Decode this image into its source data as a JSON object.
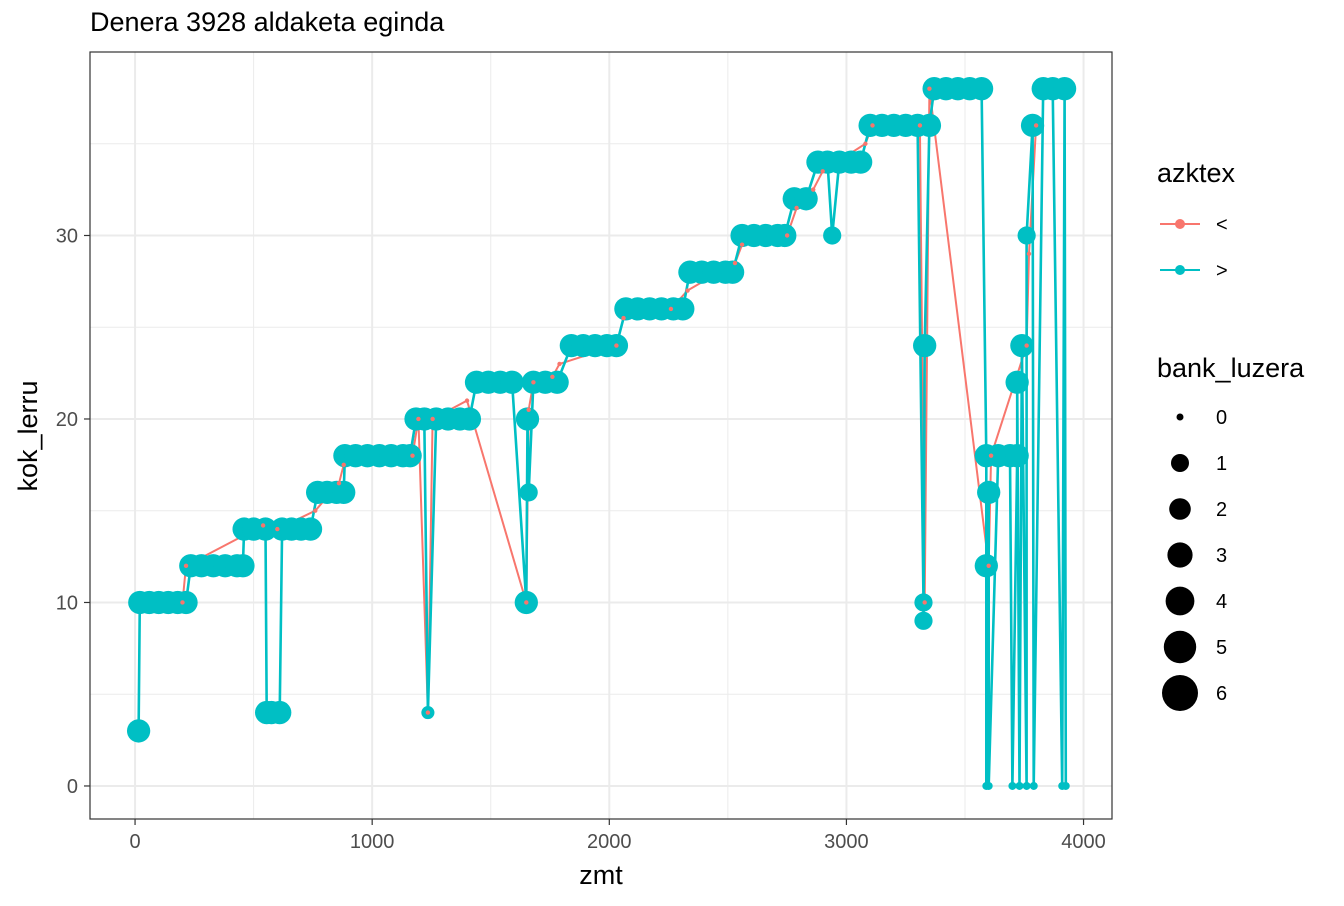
{
  "chart_data": {
    "type": "scatter",
    "title": "Denera 3928 aldaketa eginda",
    "xlabel": "zmt",
    "ylabel": "kok_lerru",
    "xlim": [
      -190,
      4120
    ],
    "ylim": [
      -1.8,
      40
    ],
    "xticks": [
      0,
      1000,
      2000,
      3000,
      4000
    ],
    "xtick_labels": [
      "0",
      "1000",
      "2000",
      "3000",
      "4000"
    ],
    "yticks": [
      0,
      10,
      20,
      30
    ],
    "ytick_labels": [
      "0",
      "10",
      "20",
      "30"
    ],
    "grid": true,
    "legend_placement": "right",
    "colors": {
      "<": "#F8766D",
      ">": "#00BFC4"
    },
    "legend_color": {
      "title": "azktex",
      "entries": [
        {
          "label": "<",
          "color": "#F8766D"
        },
        {
          "label": ">",
          "color": "#00BFC4"
        }
      ]
    },
    "legend_size": {
      "title": "bank_luzera",
      "entries": [
        {
          "label": "0",
          "value": 0
        },
        {
          "label": "1",
          "value": 1
        },
        {
          "label": "2",
          "value": 2
        },
        {
          "label": "3",
          "value": 3
        },
        {
          "label": "4",
          "value": 4
        },
        {
          "label": "5",
          "value": 5
        },
        {
          "label": "6",
          "value": 6
        }
      ]
    },
    "series": [
      {
        "name": ">",
        "color": "#00BFC4",
        "points": [
          {
            "x": 15,
            "y": 3,
            "size": 3
          },
          {
            "x": 20,
            "y": 10,
            "size": 3
          },
          {
            "x": 60,
            "y": 10,
            "size": 3
          },
          {
            "x": 100,
            "y": 10,
            "size": 3
          },
          {
            "x": 140,
            "y": 10,
            "size": 3
          },
          {
            "x": 180,
            "y": 10,
            "size": 3
          },
          {
            "x": 215,
            "y": 10,
            "size": 3
          },
          {
            "x": 235,
            "y": 12,
            "size": 3
          },
          {
            "x": 280,
            "y": 12,
            "size": 3
          },
          {
            "x": 330,
            "y": 12,
            "size": 3
          },
          {
            "x": 380,
            "y": 12,
            "size": 3
          },
          {
            "x": 430,
            "y": 12,
            "size": 3
          },
          {
            "x": 455,
            "y": 12,
            "size": 3
          },
          {
            "x": 460,
            "y": 14,
            "size": 3
          },
          {
            "x": 500,
            "y": 14,
            "size": 3
          },
          {
            "x": 550,
            "y": 14,
            "size": 3
          },
          {
            "x": 555,
            "y": 4,
            "size": 3
          },
          {
            "x": 575,
            "y": 4,
            "size": 3
          },
          {
            "x": 610,
            "y": 4,
            "size": 3
          },
          {
            "x": 620,
            "y": 14,
            "size": 3
          },
          {
            "x": 660,
            "y": 14,
            "size": 3
          },
          {
            "x": 700,
            "y": 14,
            "size": 3
          },
          {
            "x": 740,
            "y": 14,
            "size": 3
          },
          {
            "x": 770,
            "y": 16,
            "size": 3
          },
          {
            "x": 810,
            "y": 16,
            "size": 3
          },
          {
            "x": 850,
            "y": 16,
            "size": 3
          },
          {
            "x": 880,
            "y": 16,
            "size": 3
          },
          {
            "x": 885,
            "y": 18,
            "size": 3
          },
          {
            "x": 930,
            "y": 18,
            "size": 3
          },
          {
            "x": 980,
            "y": 18,
            "size": 3
          },
          {
            "x": 1030,
            "y": 18,
            "size": 3
          },
          {
            "x": 1080,
            "y": 18,
            "size": 3
          },
          {
            "x": 1130,
            "y": 18,
            "size": 3
          },
          {
            "x": 1160,
            "y": 18,
            "size": 3
          },
          {
            "x": 1185,
            "y": 20,
            "size": 3
          },
          {
            "x": 1220,
            "y": 20,
            "size": 3
          },
          {
            "x": 1235,
            "y": 4,
            "size": 1
          },
          {
            "x": 1270,
            "y": 20,
            "size": 3
          },
          {
            "x": 1320,
            "y": 20,
            "size": 3
          },
          {
            "x": 1370,
            "y": 20,
            "size": 3
          },
          {
            "x": 1410,
            "y": 20,
            "size": 3
          },
          {
            "x": 1440,
            "y": 22,
            "size": 3
          },
          {
            "x": 1490,
            "y": 22,
            "size": 3
          },
          {
            "x": 1540,
            "y": 22,
            "size": 3
          },
          {
            "x": 1590,
            "y": 22,
            "size": 3
          },
          {
            "x": 1655,
            "y": 20,
            "size": 3
          },
          {
            "x": 1660,
            "y": 16,
            "size": 2
          },
          {
            "x": 1650,
            "y": 10,
            "size": 3
          },
          {
            "x": 1680,
            "y": 22,
            "size": 3
          },
          {
            "x": 1730,
            "y": 22,
            "size": 3
          },
          {
            "x": 1780,
            "y": 22,
            "size": 3
          },
          {
            "x": 1840,
            "y": 24,
            "size": 3
          },
          {
            "x": 1890,
            "y": 24,
            "size": 3
          },
          {
            "x": 1940,
            "y": 24,
            "size": 3
          },
          {
            "x": 1990,
            "y": 24,
            "size": 3
          },
          {
            "x": 2030,
            "y": 24,
            "size": 3
          },
          {
            "x": 2070,
            "y": 26,
            "size": 3
          },
          {
            "x": 2120,
            "y": 26,
            "size": 3
          },
          {
            "x": 2170,
            "y": 26,
            "size": 3
          },
          {
            "x": 2220,
            "y": 26,
            "size": 3
          },
          {
            "x": 2270,
            "y": 26,
            "size": 3
          },
          {
            "x": 2310,
            "y": 26,
            "size": 3
          },
          {
            "x": 2340,
            "y": 28,
            "size": 3
          },
          {
            "x": 2390,
            "y": 28,
            "size": 3
          },
          {
            "x": 2440,
            "y": 28,
            "size": 3
          },
          {
            "x": 2490,
            "y": 28,
            "size": 3
          },
          {
            "x": 2520,
            "y": 28,
            "size": 3
          },
          {
            "x": 2560,
            "y": 30,
            "size": 3
          },
          {
            "x": 2610,
            "y": 30,
            "size": 3
          },
          {
            "x": 2660,
            "y": 30,
            "size": 3
          },
          {
            "x": 2710,
            "y": 30,
            "size": 3
          },
          {
            "x": 2740,
            "y": 30,
            "size": 3
          },
          {
            "x": 2780,
            "y": 32,
            "size": 3
          },
          {
            "x": 2830,
            "y": 32,
            "size": 3
          },
          {
            "x": 2880,
            "y": 34,
            "size": 3
          },
          {
            "x": 2920,
            "y": 34,
            "size": 3
          },
          {
            "x": 2940,
            "y": 30,
            "size": 2
          },
          {
            "x": 2970,
            "y": 34,
            "size": 3
          },
          {
            "x": 3020,
            "y": 34,
            "size": 3
          },
          {
            "x": 3060,
            "y": 34,
            "size": 3
          },
          {
            "x": 3100,
            "y": 36,
            "size": 3
          },
          {
            "x": 3150,
            "y": 36,
            "size": 3
          },
          {
            "x": 3200,
            "y": 36,
            "size": 3
          },
          {
            "x": 3250,
            "y": 36,
            "size": 3
          },
          {
            "x": 3300,
            "y": 36,
            "size": 3
          },
          {
            "x": 3350,
            "y": 36,
            "size": 3
          },
          {
            "x": 3330,
            "y": 24,
            "size": 3
          },
          {
            "x": 3325,
            "y": 10,
            "size": 2
          },
          {
            "x": 3325,
            "y": 9,
            "size": 2
          },
          {
            "x": 3370,
            "y": 38,
            "size": 3
          },
          {
            "x": 3420,
            "y": 38,
            "size": 3
          },
          {
            "x": 3470,
            "y": 38,
            "size": 3
          },
          {
            "x": 3520,
            "y": 38,
            "size": 3
          },
          {
            "x": 3570,
            "y": 38,
            "size": 3
          },
          {
            "x": 3590,
            "y": 18,
            "size": 3
          },
          {
            "x": 3600,
            "y": 16,
            "size": 3
          },
          {
            "x": 3590,
            "y": 12,
            "size": 3
          },
          {
            "x": 3590,
            "y": 0,
            "size": 0
          },
          {
            "x": 3600,
            "y": 0,
            "size": 0
          },
          {
            "x": 3640,
            "y": 18,
            "size": 3
          },
          {
            "x": 3690,
            "y": 18,
            "size": 3
          },
          {
            "x": 3720,
            "y": 18,
            "size": 3
          },
          {
            "x": 3700,
            "y": 0,
            "size": 0
          },
          {
            "x": 3730,
            "y": 0,
            "size": 0
          },
          {
            "x": 3760,
            "y": 0,
            "size": 0
          },
          {
            "x": 3790,
            "y": 0,
            "size": 0
          },
          {
            "x": 3720,
            "y": 22,
            "size": 3
          },
          {
            "x": 3740,
            "y": 24,
            "size": 3
          },
          {
            "x": 3760,
            "y": 30,
            "size": 2
          },
          {
            "x": 3785,
            "y": 36,
            "size": 3
          },
          {
            "x": 3830,
            "y": 38,
            "size": 3
          },
          {
            "x": 3870,
            "y": 38,
            "size": 3
          },
          {
            "x": 3920,
            "y": 38,
            "size": 3
          },
          {
            "x": 3910,
            "y": 0,
            "size": 0
          },
          {
            "x": 3925,
            "y": 0,
            "size": 0
          }
        ]
      },
      {
        "name": "<",
        "color": "#F8766D",
        "points": [
          {
            "x": 200,
            "y": 10,
            "size": 0
          },
          {
            "x": 215,
            "y": 12,
            "size": 0
          },
          {
            "x": 540,
            "y": 14.2,
            "size": 0
          },
          {
            "x": 600,
            "y": 14,
            "size": 0
          },
          {
            "x": 760,
            "y": 15,
            "size": 0
          },
          {
            "x": 860,
            "y": 16.5,
            "size": 0
          },
          {
            "x": 880,
            "y": 17.5,
            "size": 0
          },
          {
            "x": 1170,
            "y": 18,
            "size": 0
          },
          {
            "x": 1195,
            "y": 20,
            "size": 0
          },
          {
            "x": 1235,
            "y": 4,
            "size": 0
          },
          {
            "x": 1255,
            "y": 20,
            "size": 0
          },
          {
            "x": 1400,
            "y": 21,
            "size": 0
          },
          {
            "x": 1660,
            "y": 20.5,
            "size": 0
          },
          {
            "x": 1680,
            "y": 22,
            "size": 0
          },
          {
            "x": 1650,
            "y": 10,
            "size": 0
          },
          {
            "x": 1760,
            "y": 22.3,
            "size": 0
          },
          {
            "x": 1790,
            "y": 23,
            "size": 0
          },
          {
            "x": 2030,
            "y": 24,
            "size": 0
          },
          {
            "x": 2060,
            "y": 25.5,
            "size": 0
          },
          {
            "x": 2260,
            "y": 26,
            "size": 0
          },
          {
            "x": 2330,
            "y": 27,
            "size": 0
          },
          {
            "x": 2530,
            "y": 28.5,
            "size": 0
          },
          {
            "x": 2560,
            "y": 29.5,
            "size": 0
          },
          {
            "x": 2750,
            "y": 30,
            "size": 0
          },
          {
            "x": 2790,
            "y": 31.5,
            "size": 0
          },
          {
            "x": 2860,
            "y": 32.5,
            "size": 0
          },
          {
            "x": 2900,
            "y": 33.5,
            "size": 0
          },
          {
            "x": 3080,
            "y": 35,
            "size": 0
          },
          {
            "x": 3110,
            "y": 36,
            "size": 0
          },
          {
            "x": 3310,
            "y": 36,
            "size": 0
          },
          {
            "x": 3330,
            "y": 10,
            "size": 0
          },
          {
            "x": 3350,
            "y": 38,
            "size": 0
          },
          {
            "x": 3600,
            "y": 12,
            "size": 0
          },
          {
            "x": 3610,
            "y": 18,
            "size": 0
          },
          {
            "x": 3760,
            "y": 24,
            "size": 0
          },
          {
            "x": 3770,
            "y": 29,
            "size": 0
          },
          {
            "x": 3800,
            "y": 36,
            "size": 0
          }
        ]
      }
    ]
  }
}
